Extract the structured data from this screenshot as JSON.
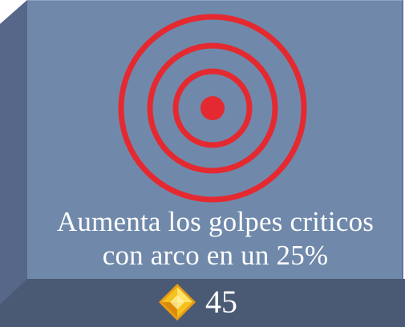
{
  "skill": {
    "icon": "target-icon",
    "description_line1": "Aumenta los golpes criticos",
    "description_line2": "con arco en un 25%"
  },
  "cost": {
    "icon": "gem-icon",
    "value": "45"
  },
  "colors": {
    "face": "#7089ab",
    "bevel": "#52627d",
    "target_red": "#e42a30",
    "gem_gold": "#f4c21c"
  }
}
